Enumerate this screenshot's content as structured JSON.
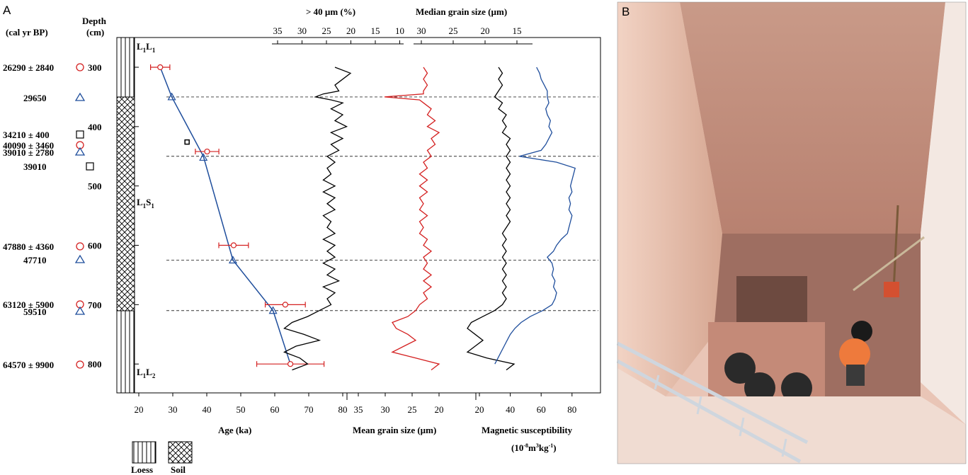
{
  "panels": {
    "a": "A",
    "b": "B"
  },
  "headers": {
    "cal_yr": "(cal yr BP)",
    "depth_l1": "Depth",
    "depth_l2": "(cm)"
  },
  "units": {
    "l1l1": {
      "main": "L",
      "sub1": "1",
      "mid": "L",
      "sub2": "1"
    },
    "l1s1": {
      "main": "L",
      "sub1": "1",
      "mid": "S",
      "sub2": "1"
    },
    "l1l2": {
      "main": "L",
      "sub1": "1",
      "mid": "L",
      "sub2": "2"
    }
  },
  "legend": {
    "loess": "Loess",
    "soil": "Soil"
  },
  "colors": {
    "age_line": "#1f4e9c",
    "error_bar": "#d42020",
    "coarse": "#d42020",
    "mag": "#1f4e9c",
    "black": "#000000",
    "photo_wall": "#d9a390",
    "photo_floor": "#b98478"
  },
  "depth_axis": {
    "ticks": [
      300,
      400,
      500,
      600,
      700,
      800
    ],
    "range": [
      250,
      850
    ]
  },
  "dates": [
    {
      "label": "26290 ±  2840",
      "marker": "circle",
      "depth": 300
    },
    {
      "label": "29650",
      "marker": "triangle",
      "depth": 350
    },
    {
      "label": "34210 ±  400",
      "marker": "square",
      "depth": 426
    },
    {
      "label": "40090 ±  3460",
      "marker": "circle",
      "depth": 442
    },
    {
      "label": "39010 ±  2780",
      "marker": "triangle",
      "depth": 452
    },
    {
      "label": "39010",
      "marker": "square",
      "depth": 468
    },
    {
      "label": "47880 ±  4360",
      "marker": "circle",
      "depth": 600
    },
    {
      "label": "47710",
      "marker": "triangle",
      "depth": 625
    },
    {
      "label": "63120 ±  5900",
      "marker": "circle",
      "depth": 700
    },
    {
      "label": "59510",
      "marker": "triangle",
      "depth": 710
    },
    {
      "label": "64570 ±  9900",
      "marker": "circle",
      "depth": 800
    }
  ],
  "photo_caption_icon": "excavation-pit-photo",
  "chart_data": {
    "type": "line",
    "title": "",
    "dashed_depths": [
      350,
      450,
      625,
      710
    ],
    "age_model": {
      "xlabel": "Age (ka)",
      "xlim": [
        15,
        80
      ],
      "ticks": [
        20,
        30,
        40,
        50,
        60,
        70,
        80
      ],
      "line": [
        [
          26.3,
          300
        ],
        [
          29.7,
          350
        ],
        [
          39,
          450
        ],
        [
          47.7,
          625
        ],
        [
          59.5,
          710
        ],
        [
          64.6,
          800
        ]
      ],
      "osl": [
        {
          "age": 26.3,
          "depth": 300,
          "err": 2.84
        },
        {
          "age": 40.1,
          "depth": 442,
          "err": 3.46
        },
        {
          "age": 47.9,
          "depth": 600,
          "err": 4.36
        },
        {
          "age": 63.1,
          "depth": 700,
          "err": 5.9
        },
        {
          "age": 64.6,
          "depth": 800,
          "err": 9.9
        }
      ],
      "c14_tri": [
        {
          "age": 29.7,
          "depth": 350
        },
        {
          "age": 39,
          "depth": 452
        },
        {
          "age": 47.7,
          "depth": 625
        },
        {
          "age": 59.5,
          "depth": 710
        }
      ],
      "square": [
        {
          "age": 34.2,
          "depth": 426
        }
      ]
    },
    "grain": {
      "top_label_coarse": "> 40 µm (%)",
      "coarse_ticks": [
        35,
        30,
        25,
        20,
        15,
        10
      ],
      "coarse_range": [
        36,
        9
      ],
      "top_label_median": "Median grain size (µm)",
      "median_ticks": [
        30,
        25,
        20,
        15
      ],
      "median_range": [
        32,
        13
      ],
      "bottom_label_mean": "Mean grain size (µm)",
      "mean_ticks": [
        35,
        30,
        25,
        20
      ],
      "mean_range": [
        40,
        17
      ],
      "mean_series": [
        [
          300,
          26
        ],
        [
          310,
          22
        ],
        [
          320,
          24
        ],
        [
          330,
          26
        ],
        [
          340,
          25
        ],
        [
          345,
          29
        ],
        [
          350,
          31
        ],
        [
          355,
          27
        ],
        [
          360,
          24
        ],
        [
          370,
          27
        ],
        [
          380,
          24
        ],
        [
          390,
          26
        ],
        [
          400,
          23
        ],
        [
          410,
          27
        ],
        [
          420,
          24
        ],
        [
          430,
          27
        ],
        [
          440,
          25
        ],
        [
          450,
          28
        ],
        [
          460,
          26
        ],
        [
          470,
          28
        ],
        [
          480,
          27
        ],
        [
          490,
          29
        ],
        [
          500,
          26
        ],
        [
          510,
          29
        ],
        [
          520,
          26
        ],
        [
          530,
          28
        ],
        [
          540,
          26
        ],
        [
          550,
          29
        ],
        [
          560,
          27
        ],
        [
          570,
          28
        ],
        [
          580,
          26
        ],
        [
          590,
          29
        ],
        [
          600,
          26
        ],
        [
          610,
          28
        ],
        [
          620,
          26
        ],
        [
          630,
          29
        ],
        [
          640,
          26
        ],
        [
          650,
          28
        ],
        [
          660,
          25
        ],
        [
          670,
          29
        ],
        [
          680,
          26
        ],
        [
          690,
          28
        ],
        [
          700,
          27
        ],
        [
          710,
          30
        ],
        [
          720,
          33
        ],
        [
          730,
          37
        ],
        [
          740,
          39
        ],
        [
          750,
          34
        ],
        [
          760,
          30
        ],
        [
          770,
          36
        ],
        [
          780,
          39
        ],
        [
          790,
          35
        ],
        [
          800,
          33
        ],
        [
          810,
          37
        ]
      ],
      "coarse_series": [
        [
          300,
          24
        ],
        [
          310,
          23
        ],
        [
          320,
          24
        ],
        [
          330,
          23
        ],
        [
          340,
          24
        ],
        [
          345,
          24
        ],
        [
          350,
          34
        ],
        [
          355,
          25
        ],
        [
          360,
          24
        ],
        [
          370,
          22
        ],
        [
          380,
          23
        ],
        [
          390,
          21
        ],
        [
          400,
          23
        ],
        [
          410,
          20
        ],
        [
          420,
          22
        ],
        [
          430,
          21
        ],
        [
          440,
          23
        ],
        [
          450,
          22
        ],
        [
          460,
          24
        ],
        [
          470,
          23
        ],
        [
          480,
          25
        ],
        [
          490,
          23
        ],
        [
          500,
          25
        ],
        [
          510,
          23
        ],
        [
          520,
          25
        ],
        [
          530,
          24
        ],
        [
          540,
          25
        ],
        [
          550,
          23
        ],
        [
          560,
          25
        ],
        [
          570,
          24
        ],
        [
          580,
          25
        ],
        [
          590,
          23
        ],
        [
          600,
          24
        ],
        [
          610,
          22
        ],
        [
          620,
          24
        ],
        [
          630,
          23
        ],
        [
          640,
          24
        ],
        [
          650,
          22
        ],
        [
          660,
          24
        ],
        [
          670,
          22
        ],
        [
          680,
          24
        ],
        [
          690,
          23
        ],
        [
          700,
          25
        ],
        [
          710,
          26
        ],
        [
          720,
          28
        ],
        [
          730,
          32
        ],
        [
          740,
          31
        ],
        [
          750,
          28
        ],
        [
          760,
          26
        ],
        [
          770,
          29
        ],
        [
          780,
          32
        ],
        [
          790,
          26
        ],
        [
          800,
          20
        ],
        [
          810,
          22
        ]
      ],
      "median_series": [
        [
          300,
          22
        ],
        [
          310,
          21
        ],
        [
          320,
          22
        ],
        [
          330,
          21
        ],
        [
          340,
          22
        ],
        [
          350,
          23
        ],
        [
          360,
          21
        ],
        [
          370,
          22
        ],
        [
          380,
          20
        ],
        [
          390,
          21
        ],
        [
          400,
          20
        ],
        [
          410,
          21
        ],
        [
          420,
          19
        ],
        [
          430,
          20
        ],
        [
          440,
          19
        ],
        [
          450,
          20
        ],
        [
          460,
          19
        ],
        [
          470,
          20
        ],
        [
          480,
          19
        ],
        [
          490,
          20
        ],
        [
          500,
          19
        ],
        [
          510,
          20
        ],
        [
          520,
          19
        ],
        [
          530,
          20
        ],
        [
          540,
          19
        ],
        [
          550,
          20
        ],
        [
          560,
          19
        ],
        [
          570,
          20
        ],
        [
          580,
          21
        ],
        [
          590,
          20
        ],
        [
          600,
          21
        ],
        [
          610,
          20
        ],
        [
          620,
          21
        ],
        [
          630,
          20
        ],
        [
          640,
          21
        ],
        [
          650,
          20
        ],
        [
          660,
          21
        ],
        [
          670,
          20
        ],
        [
          680,
          21
        ],
        [
          690,
          20
        ],
        [
          700,
          21
        ],
        [
          710,
          23
        ],
        [
          720,
          26
        ],
        [
          730,
          29
        ],
        [
          740,
          30
        ],
        [
          750,
          28
        ],
        [
          760,
          26
        ],
        [
          770,
          28
        ],
        [
          780,
          30
        ],
        [
          790,
          25
        ],
        [
          800,
          18
        ],
        [
          810,
          20
        ]
      ]
    },
    "mag": {
      "xlabel": "Magnetic susceptibility",
      "unit": {
        "pre": "(10",
        "e1": "-8",
        "m": "m",
        "e2": "3",
        "kg": "kg",
        "e3": "-1",
        "post": ")"
      },
      "ticks": [
        20,
        40,
        60,
        80
      ],
      "range": [
        20,
        87
      ],
      "series": [
        [
          300,
          57
        ],
        [
          310,
          59
        ],
        [
          320,
          60
        ],
        [
          330,
          62
        ],
        [
          340,
          64
        ],
        [
          350,
          64
        ],
        [
          360,
          65
        ],
        [
          370,
          63
        ],
        [
          380,
          64
        ],
        [
          390,
          66
        ],
        [
          400,
          65
        ],
        [
          410,
          67
        ],
        [
          420,
          65
        ],
        [
          430,
          63
        ],
        [
          440,
          60
        ],
        [
          450,
          46
        ],
        [
          455,
          58
        ],
        [
          460,
          70
        ],
        [
          470,
          82
        ],
        [
          480,
          81
        ],
        [
          490,
          80
        ],
        [
          500,
          79
        ],
        [
          510,
          80
        ],
        [
          520,
          78
        ],
        [
          530,
          79
        ],
        [
          540,
          78
        ],
        [
          550,
          80
        ],
        [
          560,
          79
        ],
        [
          570,
          78
        ],
        [
          580,
          77
        ],
        [
          590,
          73
        ],
        [
          600,
          70
        ],
        [
          610,
          68
        ],
        [
          620,
          64
        ],
        [
          630,
          67
        ],
        [
          640,
          68
        ],
        [
          650,
          67
        ],
        [
          660,
          69
        ],
        [
          670,
          68
        ],
        [
          680,
          70
        ],
        [
          690,
          69
        ],
        [
          700,
          67
        ],
        [
          710,
          61
        ],
        [
          720,
          53
        ],
        [
          730,
          47
        ],
        [
          740,
          43
        ],
        [
          750,
          40
        ],
        [
          760,
          38
        ],
        [
          770,
          36
        ],
        [
          780,
          34
        ],
        [
          790,
          32
        ],
        [
          800,
          30
        ]
      ]
    }
  }
}
